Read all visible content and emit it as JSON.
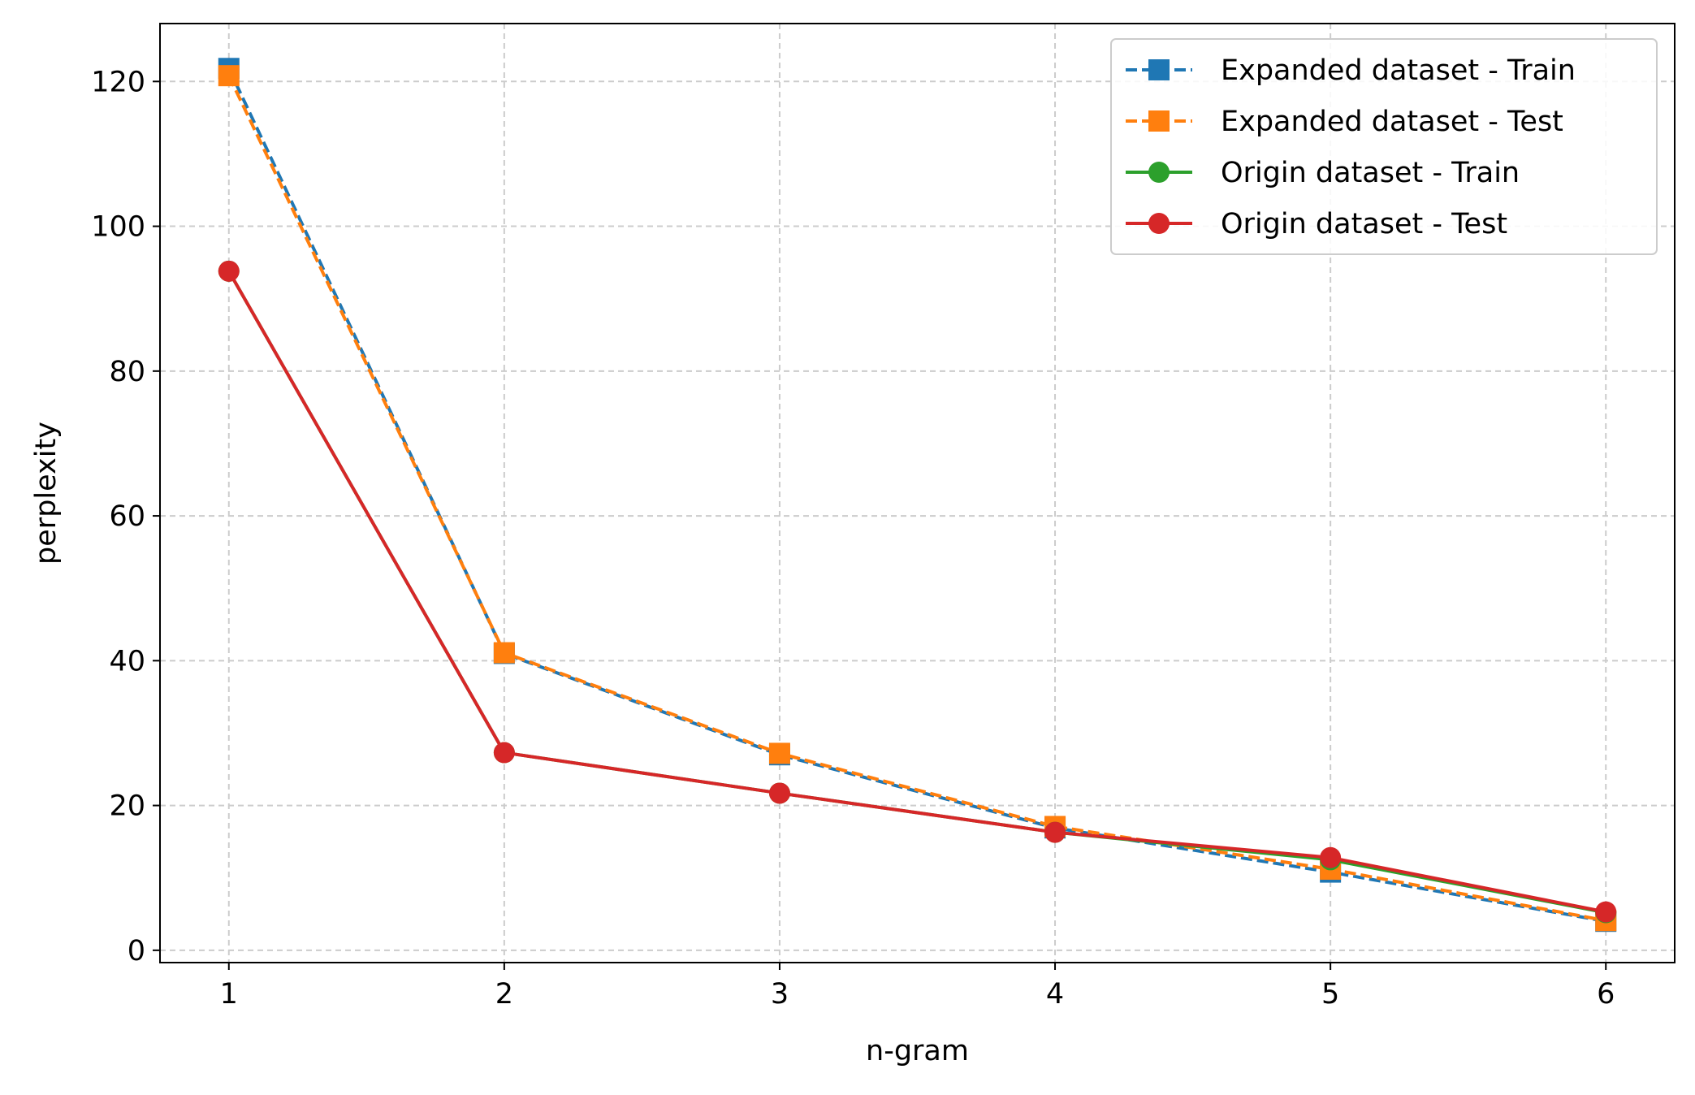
{
  "chart_data": {
    "type": "line",
    "title": "",
    "xlabel": "n-gram",
    "ylabel": "perplexity",
    "x": [
      1,
      2,
      3,
      4,
      5,
      6
    ],
    "xticks": [
      "1",
      "2",
      "3",
      "4",
      "5",
      "6"
    ],
    "yticks": [
      "0",
      "20",
      "40",
      "60",
      "80",
      "100",
      "120"
    ],
    "xlim": [
      0.75,
      6.25
    ],
    "ylim": [
      -1.7,
      128
    ],
    "grid": true,
    "legend_position": "top-right",
    "series": [
      {
        "name": "Expanded dataset - Train",
        "values": [
          121.8,
          41.0,
          27.0,
          16.9,
          10.8,
          4.0
        ],
        "color": "#1f77b4",
        "line_style": "dashed",
        "marker": "square"
      },
      {
        "name": "Expanded dataset - Test",
        "values": [
          120.8,
          41.1,
          27.2,
          17.1,
          11.2,
          4.1
        ],
        "color": "#ff7f0e",
        "line_style": "dashed",
        "marker": "square"
      },
      {
        "name": "Origin dataset - Train",
        "values": [
          93.8,
          27.3,
          21.7,
          16.3,
          12.5,
          5.2
        ],
        "color": "#2ca02c",
        "line_style": "solid",
        "marker": "circle"
      },
      {
        "name": "Origin dataset - Test",
        "values": [
          93.8,
          27.3,
          21.7,
          16.3,
          12.8,
          5.3
        ],
        "color": "#d62728",
        "line_style": "solid",
        "marker": "circle"
      }
    ]
  }
}
